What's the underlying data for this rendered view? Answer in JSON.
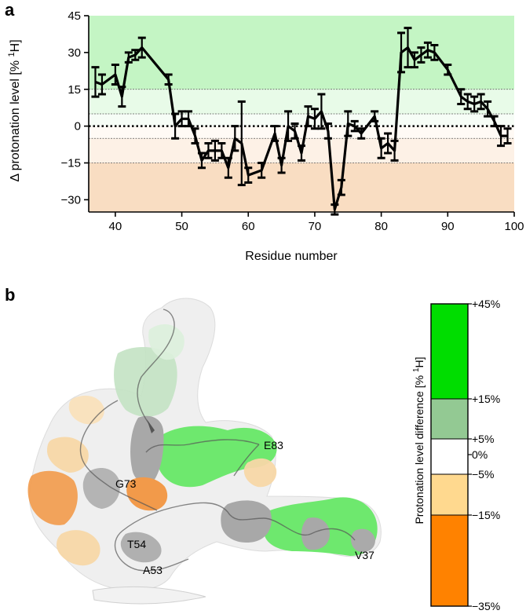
{
  "panel_a": {
    "letter": "a",
    "chart_data": {
      "type": "line",
      "xlabel": "Residue number",
      "ylabel_main": "Δ protonation level [% ",
      "ylabel_sup": "1",
      "ylabel_tail": "H]",
      "xlim": [
        36,
        100
      ],
      "ylim": [
        -35,
        45
      ],
      "xticks": [
        40,
        50,
        60,
        70,
        80,
        90,
        100
      ],
      "yticks": [
        45,
        30,
        15,
        0,
        -15,
        -30
      ],
      "bands": [
        {
          "from": 15,
          "to": 45,
          "color": "#c4f5c4"
        },
        {
          "from": 5,
          "to": 15,
          "color": "#e8fbe8"
        },
        {
          "from": 0,
          "to": 5,
          "color": "#f6fdf6"
        },
        {
          "from": -5,
          "to": 0,
          "color": "#fffaf5"
        },
        {
          "from": -15,
          "to": -5,
          "color": "#fdf1e6"
        },
        {
          "from": -35,
          "to": -15,
          "color": "#f9ddc2"
        }
      ],
      "threshold_lines": [
        15,
        5,
        -5,
        -15
      ],
      "zero_line": 0,
      "series": [
        {
          "x": [
            37,
            38,
            40,
            41,
            42,
            43,
            44,
            48,
            49,
            50,
            51,
            52,
            53,
            54,
            55,
            56,
            57,
            58,
            59,
            60,
            62,
            64,
            65,
            66,
            67,
            68,
            69,
            70,
            71,
            72,
            73,
            74,
            75,
            76,
            77,
            79,
            80,
            81,
            82,
            83,
            84,
            85,
            86,
            87,
            88,
            90,
            92,
            93,
            94,
            95,
            96,
            97,
            98,
            99
          ],
          "y": [
            18,
            17,
            21,
            12,
            28,
            29,
            32,
            19,
            0,
            3,
            3,
            -4,
            -14,
            -10,
            -10,
            -10,
            -17,
            -5,
            -7,
            -20,
            -18,
            -3,
            -16,
            0,
            -2,
            -11,
            4,
            3,
            6,
            -2,
            -34,
            -25,
            1,
            0,
            -3,
            4,
            -9,
            -7,
            -10,
            30,
            32,
            27,
            29,
            31,
            30,
            23,
            12,
            10,
            9,
            10,
            7,
            2,
            -4,
            -4
          ],
          "err": [
            6,
            4,
            4,
            4,
            2,
            2,
            4,
            2,
            5,
            3,
            3,
            3,
            3,
            3,
            4,
            3,
            4,
            5,
            17,
            3,
            3,
            3,
            3,
            6,
            3,
            3,
            4,
            4,
            7,
            3,
            2,
            3,
            5,
            2,
            2,
            2,
            4,
            4,
            4,
            8,
            8,
            3,
            3,
            3,
            3,
            2,
            3,
            3,
            3,
            3,
            3,
            2,
            4,
            3
          ]
        }
      ]
    }
  },
  "panel_b": {
    "letter": "b",
    "residue_labels": [
      "E83",
      "G73",
      "T54",
      "A53",
      "V37"
    ],
    "colorbar": {
      "title_main": "Protonation level difference [% ",
      "title_sup": "1",
      "title_tail": "H]",
      "ticks": [
        "+45%",
        "+15%",
        "+5%",
        "0%",
        "−5%",
        "−15%",
        "−35%"
      ],
      "segments": [
        {
          "from": "+45%",
          "to": "+15%",
          "color": "#00dd00"
        },
        {
          "from": "+15%",
          "to": "+5%",
          "color": "#93c993"
        },
        {
          "from": "+5%",
          "to": "−5%",
          "color": "#ffffff"
        },
        {
          "from": "−5%",
          "to": "−15%",
          "color": "#ffd98f"
        },
        {
          "from": "−15%",
          "to": "−35%",
          "color": "#ff8200"
        }
      ]
    },
    "surface_colors": {
      "positive_strong": "#6ee86e",
      "positive_weak": "#b9dcb9",
      "neutral": "#f0f0f0",
      "negative_weak": "#f7d7a6",
      "negative_strong": "#f29a4a",
      "unassigned": "#a8a8a8"
    }
  }
}
